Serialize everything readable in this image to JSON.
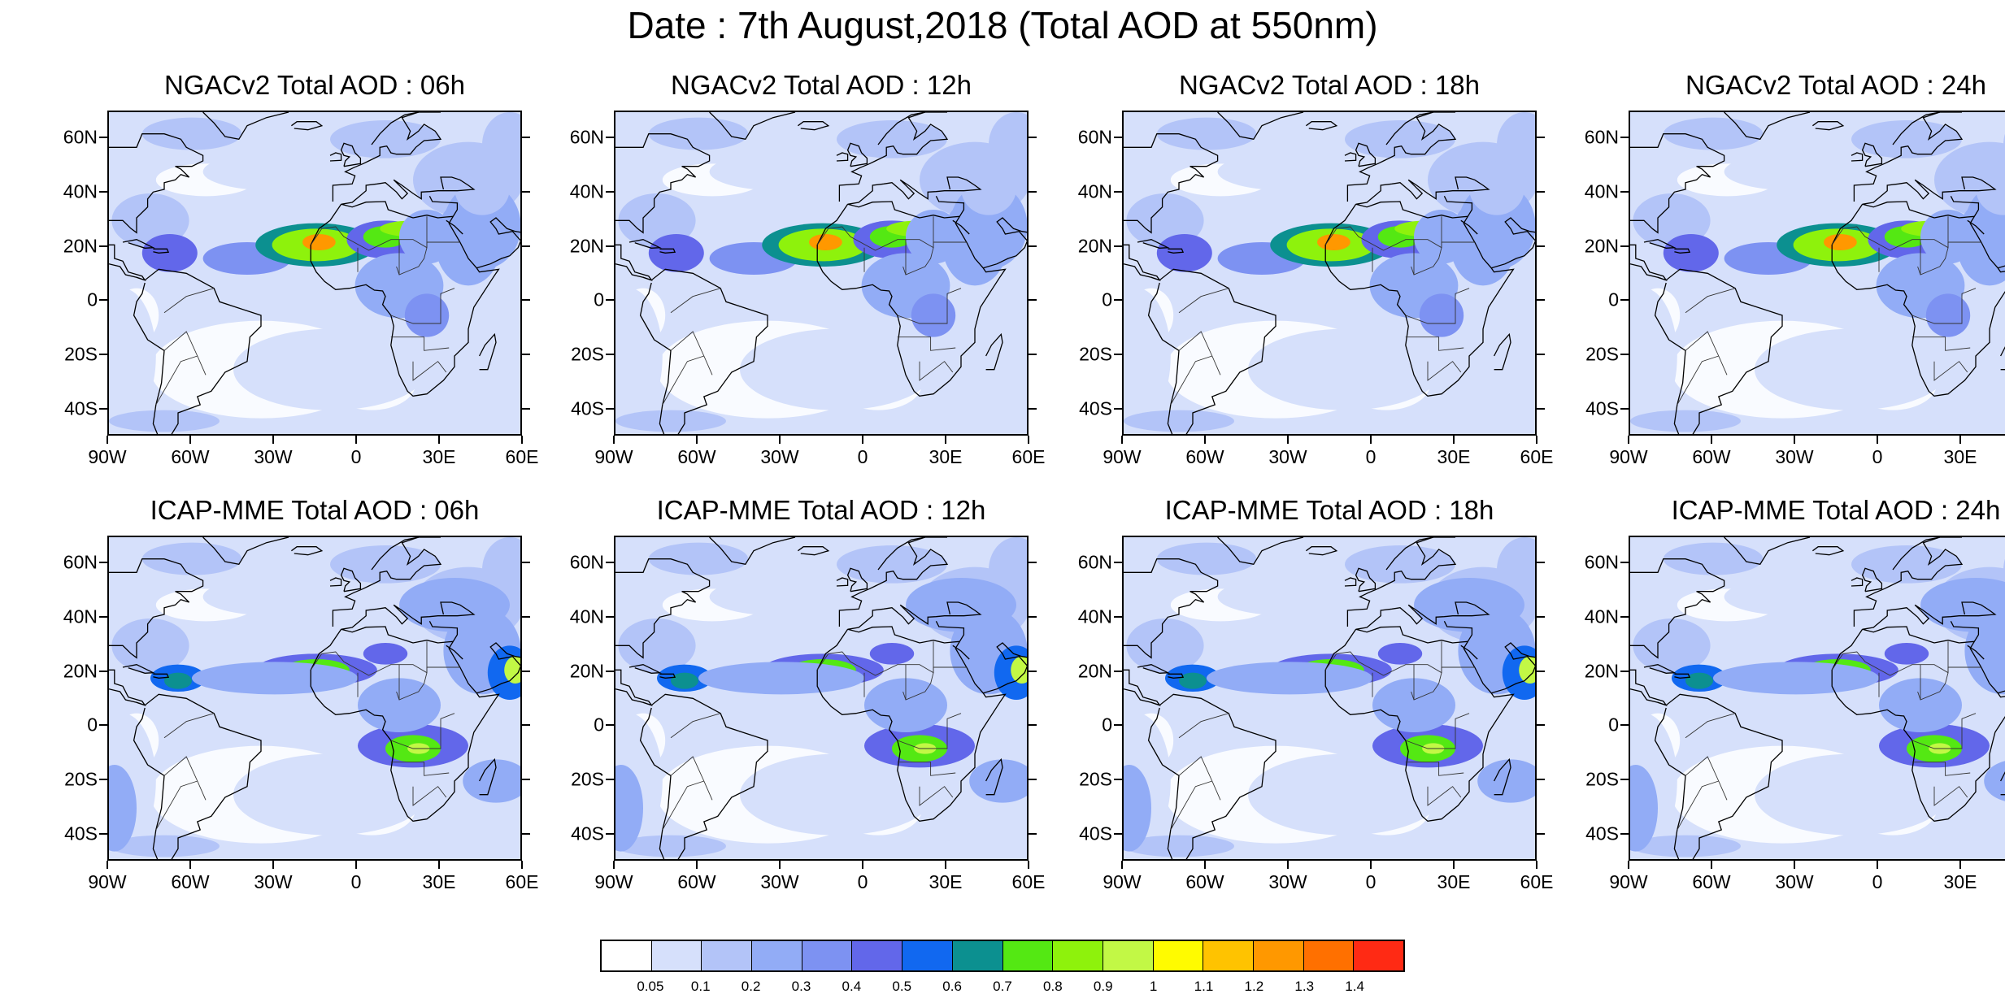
{
  "title": "Date : 7th August,2018 (Total AOD at 550nm)",
  "lat_labels": [
    "60N",
    "40N",
    "20N",
    "0",
    "20S",
    "40S"
  ],
  "lon_labels": [
    "90W",
    "60W",
    "30W",
    "0",
    "30E",
    "60E"
  ],
  "map_extent": {
    "lon_min": -90,
    "lon_max": 60,
    "lat_min": -50,
    "lat_max": 70
  },
  "panels": [
    {
      "title": "NGACv2 Total AOD : 06h",
      "model": "NGACv2",
      "hour": "06h"
    },
    {
      "title": "NGACv2 Total AOD : 12h",
      "model": "NGACv2",
      "hour": "12h"
    },
    {
      "title": "NGACv2 Total AOD : 18h",
      "model": "NGACv2",
      "hour": "18h"
    },
    {
      "title": "NGACv2 Total AOD : 24h",
      "model": "NGACv2",
      "hour": "24h"
    },
    {
      "title": "ICAP-MME Total AOD : 06h",
      "model": "ICAP-MME",
      "hour": "06h"
    },
    {
      "title": "ICAP-MME Total AOD : 12h",
      "model": "ICAP-MME",
      "hour": "12h"
    },
    {
      "title": "ICAP-MME Total AOD : 18h",
      "model": "ICAP-MME",
      "hour": "18h"
    },
    {
      "title": "ICAP-MME Total AOD : 24h",
      "model": "ICAP-MME",
      "hour": "24h"
    }
  ],
  "colorbar": {
    "labels": [
      "0.05",
      "0.1",
      "0.2",
      "0.3",
      "0.4",
      "0.5",
      "0.6",
      "0.7",
      "0.8",
      "0.9",
      "1",
      "1.1",
      "1.2",
      "1.3",
      "1.4"
    ],
    "colors": [
      "#ffffff",
      "#d6e0fb",
      "#b3c4f8",
      "#92acf6",
      "#7d92f2",
      "#6267ea",
      "#1168f0",
      "#0c9090",
      "#54e813",
      "#8ef20c",
      "#c2f845",
      "#fffb00",
      "#ffc300",
      "#ff9800",
      "#ff7000",
      "#ff2a14"
    ]
  },
  "land_color": "#ffffff",
  "border_color": "#333333"
}
